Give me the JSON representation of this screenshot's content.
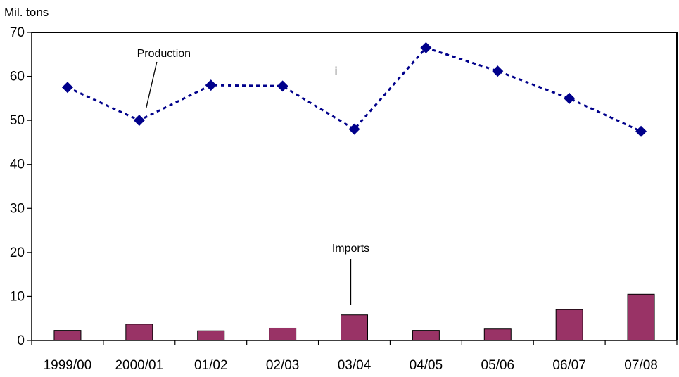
{
  "chart_data": {
    "type": "bar",
    "ylabel": "Mil. tons",
    "ylim": [
      0,
      70
    ],
    "yticks": [
      0,
      10,
      20,
      30,
      40,
      50,
      60,
      70
    ],
    "categories": [
      "1999/00",
      "2000/01",
      "01/02",
      "02/03",
      "03/04",
      "04/05",
      "05/06",
      "06/07",
      "07/08"
    ],
    "series": [
      {
        "name": "Production",
        "kind": "line",
        "style": "dashed",
        "marker": "diamond",
        "color": "#00008B",
        "values": [
          57.5,
          50.0,
          58.0,
          57.8,
          48.0,
          66.5,
          61.2,
          55.0,
          47.5
        ]
      },
      {
        "name": "Imports",
        "kind": "bar",
        "color": "#993366",
        "values": [
          2.3,
          3.7,
          2.2,
          2.8,
          5.8,
          2.3,
          2.6,
          7.0,
          10.5
        ]
      }
    ],
    "annotations": [
      {
        "text": "Production",
        "series": "Production",
        "category": "2000/01"
      },
      {
        "text": "Imports",
        "series": "Imports",
        "category": "03/04"
      },
      {
        "text": "i",
        "category": "03/04"
      }
    ]
  },
  "colors": {
    "production": "#00008B",
    "imports": "#993366",
    "axis": "#000000"
  }
}
